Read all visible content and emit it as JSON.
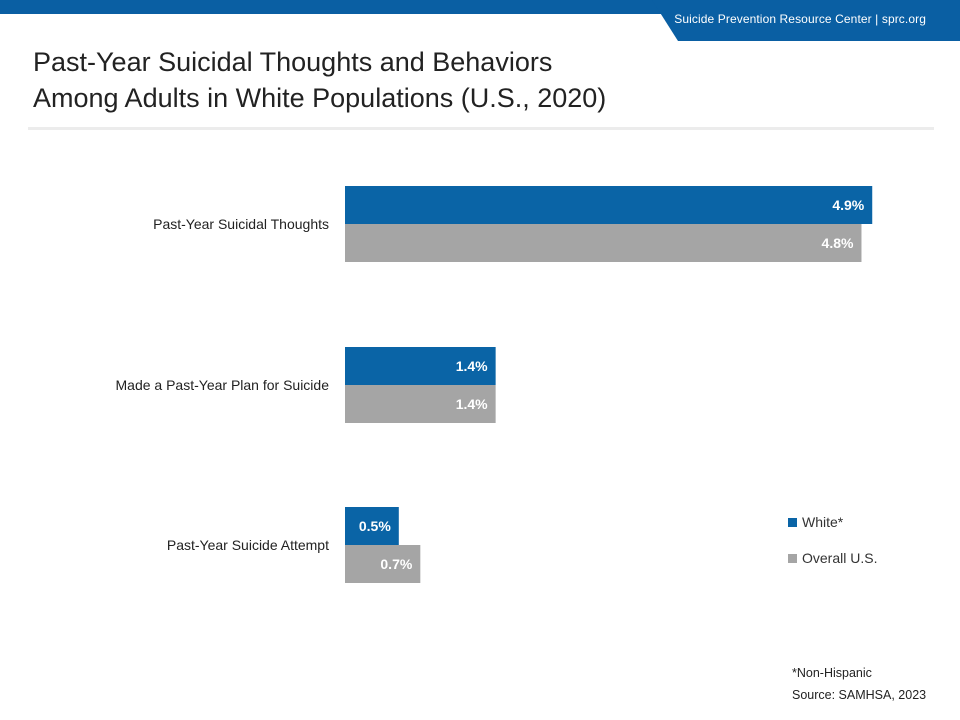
{
  "header": {
    "org_text": "Suicide Prevention Resource Center  |  sprc.org"
  },
  "title_lines": [
    "Past-Year Suicidal Thoughts and Behaviors",
    "Among Adults in White Populations (U.S., 2020)"
  ],
  "colors": {
    "brand_blue": "#0a5fa3",
    "white_series": "#0a64a6",
    "overall_series": "#a5a5a5"
  },
  "chart_data": {
    "type": "bar",
    "orientation": "horizontal",
    "categories": [
      "Past-Year Suicidal Thoughts",
      "Made a Past-Year Plan for Suicide",
      "Past-Year Suicide Attempt"
    ],
    "series": [
      {
        "name": "White*",
        "values": [
          4.9,
          1.4,
          0.5
        ],
        "labels": [
          "4.9%",
          "1.4%",
          "0.5%"
        ],
        "color": "#0a64a6"
      },
      {
        "name": "Overall U.S.",
        "values": [
          4.8,
          1.4,
          0.7
        ],
        "labels": [
          "4.8%",
          "1.4%",
          "0.7%"
        ],
        "color": "#a5a5a5"
      }
    ],
    "xlim": [
      0,
      5
    ],
    "grid": false,
    "legend_position": "right"
  },
  "footnotes": {
    "note": "*Non-Hispanic",
    "source": "Source: SAMHSA, 2023"
  }
}
